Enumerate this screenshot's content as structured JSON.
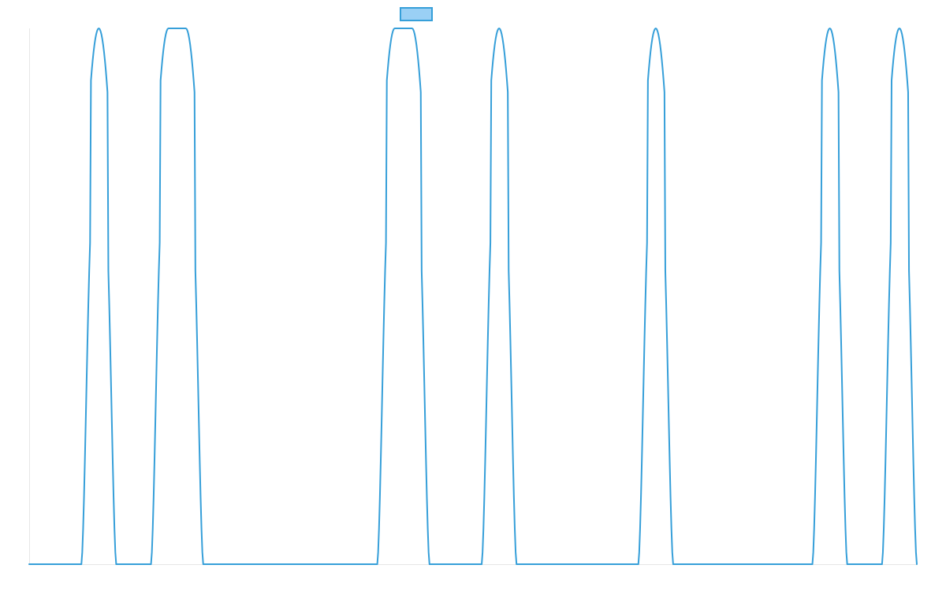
{
  "chart_data": {
    "type": "line",
    "title": "",
    "xlabel": "",
    "ylabel": "",
    "grid": false,
    "legend": "top-center",
    "xlim": [
      0,
      51
    ],
    "ylim": [
      0,
      1
    ],
    "series": [
      {
        "color": "#369fd9",
        "fill": "#9ad0f5",
        "points": [
          [
            0,
            0
          ],
          [
            3,
            0
          ],
          [
            3.5,
            0.6
          ],
          [
            4,
            1
          ],
          [
            4.5,
            0.6
          ],
          [
            5,
            0
          ],
          [
            7,
            0
          ],
          [
            7.5,
            0.6
          ],
          [
            8,
            1
          ],
          [
            9,
            1
          ],
          [
            9.5,
            0.6
          ],
          [
            10,
            0
          ],
          [
            20,
            0
          ],
          [
            20.5,
            0.6
          ],
          [
            21,
            1
          ],
          [
            22,
            1
          ],
          [
            22.5,
            0.6
          ],
          [
            23,
            0
          ],
          [
            26,
            0
          ],
          [
            26.5,
            0.6
          ],
          [
            27,
            1
          ],
          [
            27.5,
            0.6
          ],
          [
            28,
            0
          ],
          [
            35,
            0
          ],
          [
            35.5,
            0.6
          ],
          [
            36,
            1
          ],
          [
            36.5,
            0.6
          ],
          [
            37,
            0
          ],
          [
            45,
            0
          ],
          [
            45.5,
            0.6
          ],
          [
            46,
            1
          ],
          [
            46.5,
            0.6
          ],
          [
            47,
            0
          ],
          [
            49,
            0
          ],
          [
            49.5,
            0.6
          ],
          [
            50,
            1
          ],
          [
            50.5,
            0.6
          ],
          [
            51,
            0
          ]
        ]
      }
    ]
  }
}
